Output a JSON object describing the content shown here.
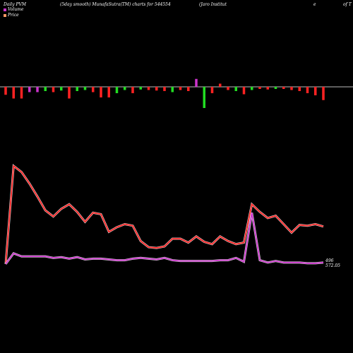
{
  "header": {
    "left": "Daily PVM",
    "middle": "(5day smooth) MunafaSutra(TM) charts for 544554",
    "right_a": "(Jaro Institut",
    "right_b": "e",
    "right_c": "of T"
  },
  "legend": [
    {
      "label": "Volume",
      "color": "#cc33cc"
    },
    {
      "label": "Price",
      "color": "#ff9966"
    }
  ],
  "end_labels": {
    "volume": "496",
    "price": "572.05"
  },
  "chart_data": {
    "type": "bar+line",
    "x_count": 41,
    "volume_bars": {
      "values": [
        -15,
        -22,
        -22,
        -10,
        -10,
        -8,
        -10,
        -7,
        -22,
        -8,
        -6,
        -10,
        -20,
        -20,
        -12,
        -6,
        -12,
        -5,
        -6,
        -7,
        -8,
        -10,
        -6,
        -8,
        15,
        -40,
        -12,
        6,
        -6,
        -8,
        -14,
        -6,
        -4,
        -5,
        -4,
        -4,
        -6,
        -8,
        -12,
        -16,
        -25
      ],
      "colors": [
        "red",
        "red",
        "red",
        "purple",
        "purple",
        "green",
        "red",
        "green",
        "red",
        "green",
        "green",
        "red",
        "red",
        "red",
        "green",
        "green",
        "red",
        "green",
        "red",
        "red",
        "red",
        "green",
        "red",
        "red",
        "purple",
        "green",
        "red",
        "red",
        "red",
        "green",
        "red",
        "green",
        "red",
        "red",
        "green",
        "red",
        "red",
        "red",
        "red",
        "red",
        "red"
      ]
    },
    "series": [
      {
        "name": "Price",
        "color": "#ff2222",
        "values": [
          100,
          228,
          220,
          205,
          188,
          170,
          162,
          172,
          178,
          168,
          155,
          167,
          165,
          142,
          148,
          152,
          150,
          130,
          122,
          121,
          123,
          133,
          133,
          128,
          136,
          129,
          126,
          136,
          130,
          126,
          128,
          178,
          168,
          160,
          163,
          152,
          141,
          151,
          150,
          152,
          149
        ]
      },
      {
        "name": "Volume",
        "color": "#cc33cc",
        "values": [
          100,
          114,
          110,
          110,
          110,
          110,
          108,
          109,
          107,
          109,
          106,
          107,
          107,
          106,
          105,
          105,
          107,
          108,
          107,
          106,
          108,
          105,
          104,
          104,
          104,
          104,
          104,
          105,
          105,
          108,
          103,
          167,
          105,
          102,
          104,
          102,
          102,
          102,
          101,
          101,
          102
        ]
      }
    ]
  }
}
